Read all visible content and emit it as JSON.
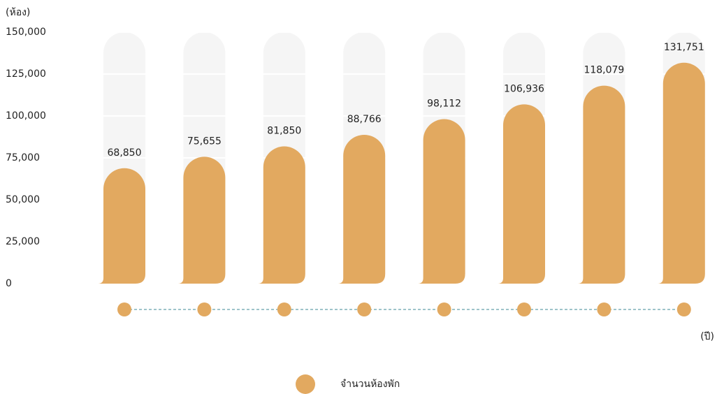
{
  "chart_data": {
    "type": "bar",
    "y_axis_label": "(ห้อง)",
    "x_axis_label": "(ปี)",
    "categories": [
      null,
      null,
      null,
      null,
      null,
      null,
      null,
      null
    ],
    "series": [
      {
        "name": "จำนวนห้องพัก",
        "color": "#e2a960",
        "values": [
          68850,
          75655,
          81850,
          88766,
          98112,
          106936,
          118079,
          131751
        ],
        "value_labels": [
          "68,850",
          "75,655",
          "81,850",
          "88,766",
          "98,112",
          "106,936",
          "118,079",
          "131,751"
        ]
      }
    ],
    "ylim": [
      0,
      150000
    ],
    "yticks": [
      0,
      {
        "value": 25000,
        "label": "25,000"
      },
      {
        "value": 50000,
        "label": "50,000"
      },
      {
        "value": 75000,
        "label": "75,000"
      },
      {
        "value": 100000,
        "label": "100,000"
      },
      {
        "value": 125000,
        "label": "125,000"
      },
      {
        "value": 150000,
        "label": "150,000"
      }
    ],
    "grid": true
  }
}
